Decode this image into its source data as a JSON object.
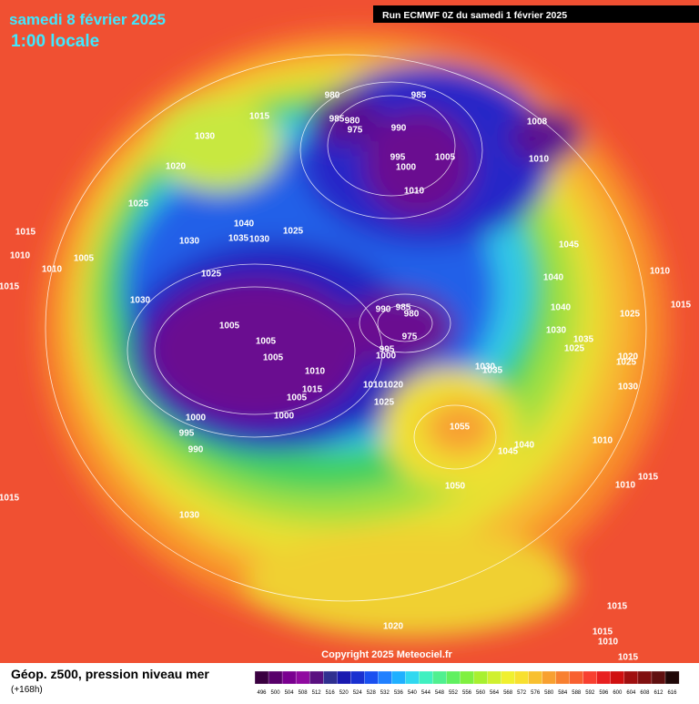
{
  "header": {
    "title": "samedi 8 février 2025",
    "time": "1:00 locale",
    "run": "Run ECMWF 0Z du samedi 1 février 2025"
  },
  "map": {
    "isobar_labels": [
      "980",
      "985",
      "985",
      "980",
      "975",
      "990",
      "1015",
      "1030",
      "1020",
      "1025",
      "995",
      "1000",
      "1005",
      "1010",
      "1008",
      "1010",
      "1040",
      "1035",
      "1030",
      "1025",
      "1030",
      "1045",
      "1040",
      "1025",
      "1030",
      "1015",
      "1010",
      "1010",
      "1005",
      "1015",
      "990",
      "985",
      "980",
      "975",
      "1005",
      "1005",
      "1005",
      "995",
      "1000",
      "1010",
      "1015",
      "1005",
      "1010",
      "1020",
      "1025",
      "1000",
      "1000",
      "995",
      "990",
      "1040",
      "1030",
      "1035",
      "1025",
      "1030",
      "1035",
      "1055",
      "1045",
      "1040",
      "1010",
      "1050",
      "1010",
      "1015",
      "1025",
      "1020",
      "1025",
      "1030",
      "1015",
      "1010",
      "1015",
      "1030",
      "1020",
      "1015",
      "1015",
      "1010",
      "1015"
    ],
    "copyright": "Copyright 2025 Meteociel.fr"
  },
  "footer": {
    "title": "Géop. z500, pression niveau mer",
    "lead": "(+168h)"
  },
  "legend": {
    "labels": [
      "496",
      "500",
      "504",
      "508",
      "512",
      "516",
      "520",
      "524",
      "528",
      "532",
      "536",
      "540",
      "544",
      "548",
      "552",
      "556",
      "560",
      "564",
      "568",
      "572",
      "576",
      "580",
      "584",
      "588",
      "592",
      "596",
      "600",
      "604",
      "608",
      "612",
      "616"
    ],
    "colors": [
      "#3a0040",
      "#58006a",
      "#7a0090",
      "#900aa0",
      "#5a1080",
      "#303090",
      "#1a1ab0",
      "#1a30d0",
      "#1a50f0",
      "#2080ff",
      "#20b0ff",
      "#30d8f0",
      "#40f0c0",
      "#50f090",
      "#60f060",
      "#80f040",
      "#a8f030",
      "#d0f030",
      "#f0f030",
      "#f8e030",
      "#f8c030",
      "#f8a030",
      "#f88030",
      "#f86030",
      "#f84030",
      "#e82020",
      "#d01010",
      "#a01010",
      "#801010",
      "#601010",
      "#200808"
    ]
  }
}
